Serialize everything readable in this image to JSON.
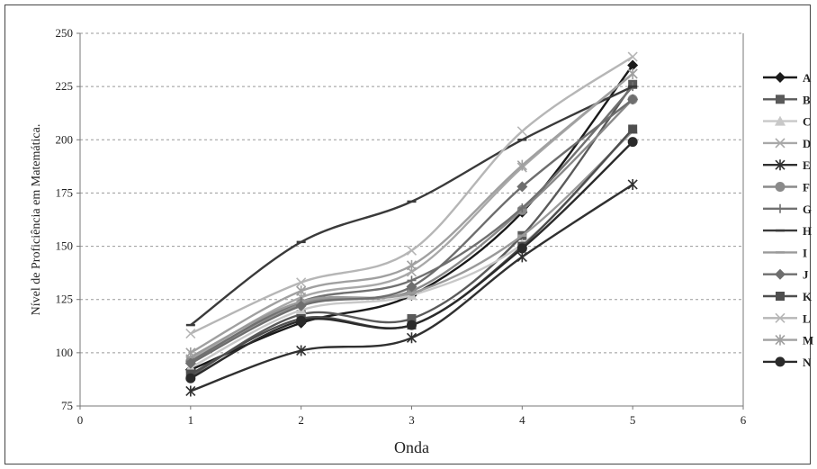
{
  "chart_data": {
    "type": "line",
    "title": "",
    "xlabel": "Onda",
    "ylabel": "Nível de Proficiência em Matemática.",
    "xlim": [
      0,
      6
    ],
    "ylim": [
      75,
      250
    ],
    "xticks": [
      0,
      1,
      2,
      3,
      4,
      5,
      6
    ],
    "yticks": [
      75,
      100,
      125,
      150,
      175,
      200,
      225,
      250
    ],
    "grid": "horizontal dashed",
    "legend": "right",
    "x": [
      1,
      2,
      3,
      4,
      5
    ],
    "series": [
      {
        "name": "A",
        "color": "#1a1a1a",
        "marker": "diamond",
        "values": [
          92,
          114,
          127,
          166,
          235
        ]
      },
      {
        "name": "B",
        "color": "#5a5a5a",
        "marker": "square",
        "values": [
          89,
          118,
          116,
          155,
          226
        ]
      },
      {
        "name": "C",
        "color": "#c8c8c8",
        "marker": "triangle",
        "values": [
          93,
          120,
          127,
          151,
          205
        ]
      },
      {
        "name": "D",
        "color": "#a8a8a8",
        "marker": "x",
        "values": [
          97,
          126,
          138,
          187,
          231
        ]
      },
      {
        "name": "E",
        "color": "#303030",
        "marker": "star",
        "values": [
          82,
          101,
          107,
          145,
          179
        ]
      },
      {
        "name": "F",
        "color": "#8a8a8a",
        "marker": "circle",
        "values": [
          96,
          123,
          129,
          167,
          219
        ]
      },
      {
        "name": "G",
        "color": "#707070",
        "marker": "plus",
        "values": [
          96,
          124,
          134,
          168,
          225
        ]
      },
      {
        "name": "H",
        "color": "#3a3a3a",
        "marker": "dash",
        "values": [
          113,
          152,
          171,
          200,
          225
        ]
      },
      {
        "name": "I",
        "color": "#9a9a9a",
        "marker": "dash",
        "values": [
          98,
          124,
          128,
          155,
          204
        ]
      },
      {
        "name": "J",
        "color": "#6e6e6e",
        "marker": "diamond",
        "values": [
          95,
          122,
          131,
          178,
          219
        ]
      },
      {
        "name": "K",
        "color": "#4e4e4e",
        "marker": "square",
        "values": [
          90,
          116,
          113,
          150,
          205
        ]
      },
      {
        "name": "L",
        "color": "#b6b6b6",
        "marker": "x",
        "values": [
          109,
          133,
          148,
          204,
          239
        ]
      },
      {
        "name": "M",
        "color": "#a0a0a0",
        "marker": "star",
        "values": [
          100,
          129,
          141,
          188,
          231
        ]
      },
      {
        "name": "N",
        "color": "#2a2a2a",
        "marker": "circle",
        "values": [
          88,
          115,
          113,
          149,
          199
        ]
      }
    ]
  }
}
